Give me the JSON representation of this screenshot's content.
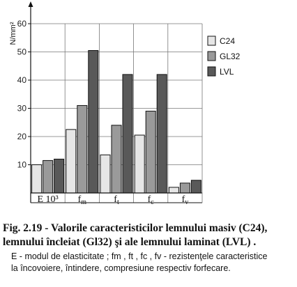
{
  "chart_data": {
    "type": "bar",
    "categories": [
      "E 10³",
      "fm",
      "ft",
      "fc",
      "fv"
    ],
    "series": [
      {
        "name": "C24",
        "values": [
          10,
          22.5,
          13.5,
          20.5,
          2
        ],
        "color": "#e6e6e6"
      },
      {
        "name": "GL32",
        "values": [
          11.5,
          31,
          24,
          29,
          3.5
        ],
        "color": "#9a9a9a"
      },
      {
        "name": "LVL",
        "values": [
          12,
          50.5,
          42,
          42,
          4.5
        ],
        "color": "#595959"
      }
    ],
    "ylabel": "N/mm²",
    "ylim": [
      0,
      60
    ],
    "yticks": [
      10,
      20,
      30,
      40,
      50,
      60
    ],
    "grid": true,
    "legend_position": "top-right"
  },
  "caption": {
    "line1": "Fig. 2.19 - Valorile caracteristicilor lemnului masiv (C24),",
    "line2": "lemnului încleiat (Gl32) şi ale lemnului  laminat (LVL) ."
  },
  "note": {
    "line1": "E - modul de elasticitate ; fm , ft , fc , fv - rezistenţele caracteristice",
    "line2": "la încovoiere, întindere, compresiune respectiv forfecare."
  }
}
